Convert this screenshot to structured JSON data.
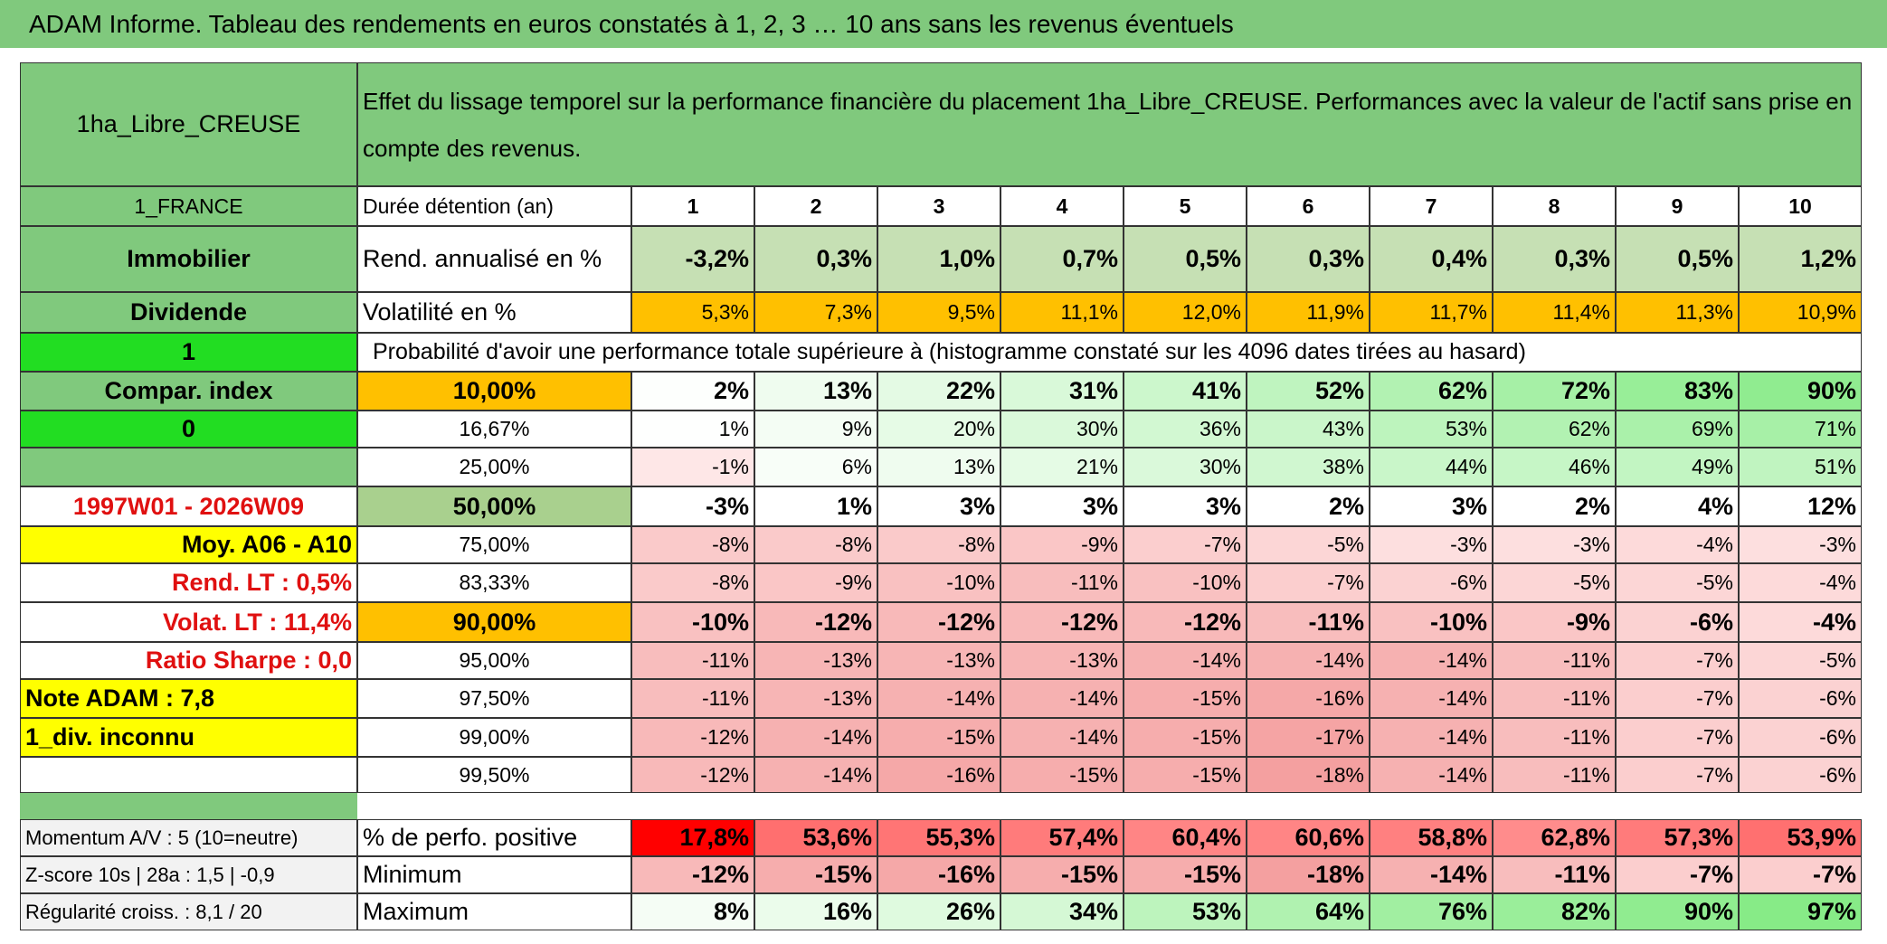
{
  "header": {
    "title": "ADAM Informe. Tableau des rendements en euros constatés à 1, 2, 3 … 10 ans sans les revenus éventuels"
  },
  "table": {
    "name": "1ha_Libre_CREUSE",
    "description": "Effet du lissage temporel sur la performance financière du placement 1ha_Libre_CREUSE. Performances avec la valeur de l'actif sans prise en compte des revenus.",
    "rows": [
      {
        "label": "1_FRANCE",
        "param": "Durée détention (an)",
        "values": [
          "1",
          "2",
          "3",
          "4",
          "5",
          "6",
          "7",
          "8",
          "9",
          "10"
        ]
      },
      {
        "label": "Immobilier",
        "param": "Rend. annualisé en %",
        "values": [
          "-3,2%",
          "0,3%",
          "1,0%",
          "0,7%",
          "0,5%",
          "0,3%",
          "0,4%",
          "0,3%",
          "0,5%",
          "1,2%"
        ]
      },
      {
        "label": "Dividende",
        "param": "Volatilité en %",
        "values": [
          "5,3%",
          "7,3%",
          "9,5%",
          "11,1%",
          "12,0%",
          "11,9%",
          "11,7%",
          "11,4%",
          "11,3%",
          "10,9%"
        ]
      },
      {
        "label": "1",
        "param": "Probabilité d'avoir une performance totale supérieure à (histogramme constaté sur les 4096 dates tirées au hasard)"
      },
      {
        "label": "Compar. index",
        "param": "10,00%",
        "values": [
          "2%",
          "13%",
          "22%",
          "31%",
          "41%",
          "52%",
          "62%",
          "72%",
          "83%",
          "90%"
        ]
      },
      {
        "label": "0",
        "param": "16,67%",
        "values": [
          "1%",
          "9%",
          "20%",
          "30%",
          "36%",
          "43%",
          "53%",
          "62%",
          "69%",
          "71%"
        ]
      },
      {
        "param": "25,00%",
        "values": [
          "-1%",
          "6%",
          "13%",
          "21%",
          "30%",
          "38%",
          "44%",
          "46%",
          "49%",
          "51%"
        ]
      },
      {
        "label": "1997W01 - 2026W09",
        "param": "50,00%",
        "values": [
          "-3%",
          "1%",
          "3%",
          "3%",
          "3%",
          "2%",
          "3%",
          "2%",
          "4%",
          "12%"
        ]
      },
      {
        "label": "Moy. A06 - A10",
        "param": "75,00%",
        "values": [
          "-8%",
          "-8%",
          "-8%",
          "-9%",
          "-7%",
          "-5%",
          "-3%",
          "-3%",
          "-4%",
          "-3%"
        ]
      },
      {
        "label": "Rend. LT :   0,5%",
        "param": "83,33%",
        "values": [
          "-8%",
          "-9%",
          "-10%",
          "-11%",
          "-10%",
          "-7%",
          "-6%",
          "-5%",
          "-5%",
          "-4%"
        ]
      },
      {
        "label": "Volat. LT :   11,4%",
        "param": "90,00%",
        "values": [
          "-10%",
          "-12%",
          "-12%",
          "-12%",
          "-12%",
          "-11%",
          "-10%",
          "-9%",
          "-6%",
          "-4%"
        ]
      },
      {
        "label": "Ratio Sharpe :    0,0",
        "param": "95,00%",
        "values": [
          "-11%",
          "-13%",
          "-13%",
          "-13%",
          "-14%",
          "-14%",
          "-14%",
          "-11%",
          "-7%",
          "-5%"
        ]
      },
      {
        "label": "Note ADAM : 7,8",
        "param": "97,50%",
        "values": [
          "-11%",
          "-13%",
          "-14%",
          "-14%",
          "-15%",
          "-16%",
          "-14%",
          "-11%",
          "-7%",
          "-6%"
        ]
      },
      {
        "label": "1_div. inconnu",
        "param": "99,00%",
        "values": [
          "-12%",
          "-14%",
          "-15%",
          "-14%",
          "-15%",
          "-17%",
          "-14%",
          "-11%",
          "-7%",
          "-6%"
        ]
      },
      {
        "param": "99,50%",
        "values": [
          "-12%",
          "-14%",
          "-16%",
          "-15%",
          "-15%",
          "-18%",
          "-14%",
          "-11%",
          "-7%",
          "-6%"
        ]
      }
    ],
    "summary_rows": [
      {
        "label": "Momentum A/V : 5 (10=neutre)",
        "param": "% de perfo. positive",
        "values": [
          "17,8%",
          "53,6%",
          "55,3%",
          "57,4%",
          "60,4%",
          "60,6%",
          "58,8%",
          "62,8%",
          "57,3%",
          "53,9%"
        ]
      },
      {
        "label": "Z-score 10s | 28a : 1,5 | -0,9",
        "param": "Minimum",
        "values": [
          "-12%",
          "-15%",
          "-16%",
          "-15%",
          "-15%",
          "-18%",
          "-14%",
          "-11%",
          "-7%",
          "-7%"
        ]
      },
      {
        "label": "Régularité croiss. : 8,1 / 20",
        "param": "Maximum",
        "values": [
          "8%",
          "16%",
          "26%",
          "34%",
          "53%",
          "64%",
          "76%",
          "82%",
          "90%",
          "97%"
        ]
      }
    ]
  }
}
